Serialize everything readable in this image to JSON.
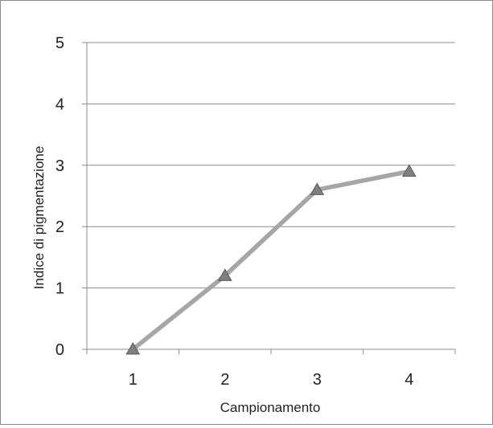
{
  "chart_data": {
    "type": "line",
    "categories": [
      "1",
      "2",
      "3",
      "4"
    ],
    "series": [
      {
        "values": [
          0,
          1.2,
          2.6,
          2.9
        ],
        "marker": "triangle"
      }
    ],
    "xlabel": "Campionamento",
    "ylabel": "Indice di pigmentazione",
    "ylim": [
      0,
      5
    ],
    "yticks": [
      "0",
      "1",
      "2",
      "3",
      "4",
      "5"
    ],
    "grid": true,
    "legend": "none"
  },
  "colors": {
    "line": "#a6a6a6",
    "marker": "#7f7f7f",
    "marker_edge": "#595959",
    "grid": "#8c8c8c",
    "axis": "#8c8c8c"
  }
}
